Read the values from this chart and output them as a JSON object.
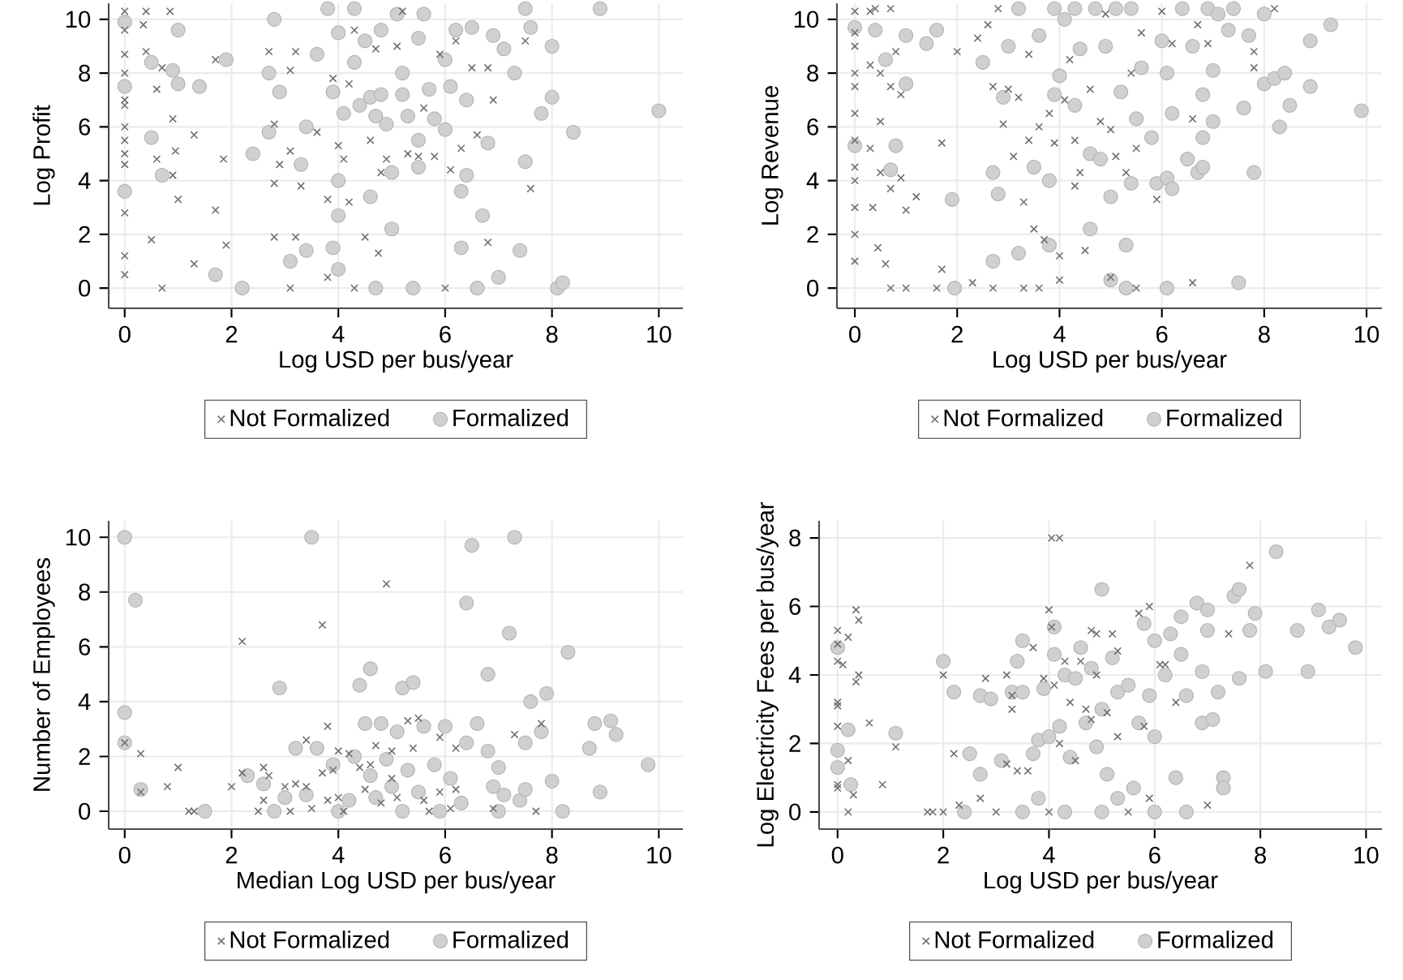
{
  "chart_data": [
    {
      "type": "scatter",
      "xlabel": "Log USD per bus/year",
      "ylabel": "Log Profit",
      "xlim": [
        -0.3,
        10.45
      ],
      "ylim": [
        -0.75,
        10.6
      ],
      "xticks": [
        0,
        2,
        4,
        6,
        8,
        10
      ],
      "yticks": [
        0,
        2,
        4,
        6,
        8,
        10
      ],
      "grid": true,
      "legend": "bottom",
      "series": [
        {
          "name": "Not Formalized",
          "color": "#707070",
          "marker": "cross",
          "x": [
            0,
            0,
            0,
            0,
            0,
            0,
            0,
            0,
            0,
            0,
            0,
            0,
            0,
            0.4,
            0.35,
            0.4,
            0.6,
            0.7,
            0.85,
            0.9,
            0.95,
            0.6,
            0.9,
            1,
            0.5,
            0.7,
            1.3,
            1.3,
            1.7,
            1.85,
            1.7,
            1.9,
            2.7,
            2.8,
            2.9,
            2.8,
            2.8,
            3.1,
            3.2,
            3.1,
            3.3,
            3.2,
            3.1,
            3.6,
            3.8,
            3.9,
            4,
            4.1,
            4.2,
            4.3,
            4.2,
            4.3,
            4.5,
            4.6,
            4.7,
            4.8,
            4.75,
            4.9,
            5.1,
            5.2,
            5.3,
            5.5,
            5.6,
            5.8,
            5.9,
            6,
            6.1,
            6.2,
            6.3,
            6.5,
            6.6,
            6.8,
            6.8,
            6.9,
            7.5,
            7.6,
            3.8
          ],
          "values": [
            10.3,
            9.6,
            8.7,
            8,
            7,
            6.8,
            6,
            5.5,
            5,
            4.6,
            2.8,
            1.2,
            0.5,
            10.3,
            9.8,
            8.8,
            7.4,
            8.2,
            10.3,
            6.3,
            5.1,
            4.8,
            4.2,
            3.3,
            1.8,
            0,
            0.9,
            5.7,
            8.5,
            4.8,
            2.9,
            1.6,
            8.8,
            6.1,
            4.6,
            3.9,
            1.9,
            8.1,
            8.8,
            5.1,
            3.8,
            1.9,
            0,
            5.8,
            3.3,
            7.8,
            5.3,
            4.8,
            7.6,
            9.6,
            3.2,
            0,
            1.9,
            5.5,
            8.9,
            4.3,
            1.3,
            4.8,
            9,
            10.3,
            5,
            4.9,
            6.7,
            4.9,
            8.7,
            0,
            4.4,
            9.2,
            5.2,
            8.2,
            5.7,
            8.2,
            1.7,
            7,
            9.2,
            3.7,
            0.4
          ]
        },
        {
          "name": "Formalized",
          "color": "#d0d0d0",
          "marker": "circle",
          "x": [
            0,
            0,
            0,
            0.5,
            0.5,
            0.7,
            0.9,
            1,
            1,
            1.4,
            1.7,
            1.9,
            2.2,
            2.4,
            2.7,
            2.8,
            2.7,
            2.9,
            3.1,
            3.3,
            3.4,
            3.4,
            3.6,
            3.8,
            3.9,
            3.9,
            4,
            4,
            4,
            4,
            4.1,
            4.3,
            4.3,
            4.4,
            4.5,
            4.6,
            4.6,
            4.7,
            4.8,
            4.8,
            4.9,
            5,
            5,
            5.1,
            5.2,
            5.3,
            5.4,
            5.5,
            5.5,
            5.6,
            5.7,
            5.8,
            6,
            6,
            6.2,
            6.3,
            6.3,
            6.4,
            6.4,
            6.5,
            6.6,
            6.7,
            6.8,
            6.9,
            7,
            7.1,
            7.3,
            7.4,
            7.5,
            7.5,
            7.6,
            7.8,
            8,
            8,
            8.1,
            8.2,
            8.4,
            8.9,
            10,
            5.5,
            5.2,
            4.7,
            6.1
          ],
          "values": [
            9.9,
            7.5,
            3.6,
            5.6,
            8.4,
            4.2,
            8.1,
            9.6,
            7.6,
            7.5,
            0.5,
            8.5,
            0,
            5,
            5.8,
            10,
            8,
            7.3,
            1,
            4.6,
            1.4,
            6,
            8.7,
            10.4,
            7.3,
            1.5,
            4,
            0.7,
            2.7,
            9.5,
            6.5,
            10.4,
            8.4,
            6.8,
            9.2,
            3.4,
            7.1,
            0,
            9.6,
            7.2,
            6.1,
            2.2,
            4.3,
            10.2,
            8,
            6.4,
            0,
            9.3,
            4.5,
            10.2,
            7.4,
            6.3,
            5.9,
            8.5,
            9.6,
            1.5,
            3.6,
            7,
            4.2,
            9.7,
            0,
            2.7,
            5.4,
            9.4,
            0.4,
            8.9,
            8,
            1.4,
            10.4,
            4.7,
            9.7,
            6.5,
            7.1,
            9,
            0,
            0.2,
            5.8,
            10.4,
            6.6,
            5.5,
            7.2,
            6.4,
            7.5
          ]
        }
      ]
    },
    {
      "type": "scatter",
      "xlabel": "Log USD per bus/year",
      "ylabel": "Log Revenue",
      "xlim": [
        -0.35,
        10.3
      ],
      "ylim": [
        -0.75,
        10.6
      ],
      "xticks": [
        0,
        2,
        4,
        6,
        8,
        10
      ],
      "yticks": [
        0,
        2,
        4,
        6,
        8,
        10
      ],
      "grid": true,
      "legend": "bottom",
      "series": [
        {
          "name": "Not Formalized",
          "color": "#707070",
          "marker": "cross",
          "x": [
            0,
            0,
            0,
            0,
            0,
            0,
            0,
            0,
            0,
            0,
            0,
            0,
            0.3,
            0.4,
            0.7,
            0.3,
            0.5,
            0.7,
            0.8,
            0.9,
            0.5,
            0.3,
            0.5,
            0.7,
            0.9,
            1,
            1.2,
            0.35,
            0.45,
            0.6,
            0.7,
            1,
            1.6,
            1.7,
            1.7,
            2,
            2.3,
            2.4,
            2.6,
            2.7,
            2.7,
            2.8,
            2.9,
            3,
            3.1,
            3.2,
            3.3,
            3.3,
            3.4,
            3.4,
            3.5,
            3.6,
            3.6,
            3.7,
            3.8,
            3.9,
            4,
            4,
            4.1,
            4.2,
            4.3,
            4.3,
            4.4,
            4.5,
            4.6,
            4.8,
            4.9,
            5,
            5,
            5.1,
            5.3,
            5.4,
            5.5,
            5.5,
            5.6,
            5.9,
            6,
            6.2,
            6.6,
            6.6,
            6.7,
            6.9,
            7.8,
            7.8,
            8.2
          ],
          "values": [
            10.3,
            9.5,
            9,
            8,
            7.5,
            6.5,
            5.5,
            4.5,
            4,
            3,
            2,
            1,
            10.3,
            10.4,
            10.4,
            8.3,
            8,
            7.5,
            8.8,
            7.2,
            6.2,
            5.2,
            4.3,
            3.7,
            4.1,
            2.9,
            3.4,
            3,
            1.5,
            0.9,
            0,
            0,
            0,
            0.7,
            5.4,
            8.8,
            0.2,
            9.3,
            9.8,
            7.5,
            0,
            10.4,
            6.1,
            7.4,
            4.9,
            7.1,
            0,
            3.2,
            8.7,
            5.5,
            2.2,
            6,
            0,
            1.8,
            6.5,
            5.4,
            1.2,
            0.3,
            7,
            8.5,
            5.5,
            3.8,
            4.3,
            1.4,
            7.4,
            6.2,
            10.2,
            5.9,
            0.4,
            4.9,
            4.3,
            8,
            0,
            5.2,
            9.5,
            3.3,
            10.3,
            9.1,
            6.3,
            0.2,
            9.8,
            9.1,
            8.8,
            8.2,
            10.4
          ]
        },
        {
          "name": "Formalized",
          "color": "#d0d0d0",
          "marker": "circle",
          "x": [
            0,
            0,
            0.4,
            0.6,
            0.8,
            0.7,
            1,
            1,
            1.4,
            1.6,
            1.9,
            1.95,
            2.5,
            2.7,
            2.7,
            2.8,
            2.9,
            3,
            3.2,
            3.2,
            3.5,
            3.6,
            3.8,
            3.8,
            3.9,
            3.9,
            4,
            4.1,
            4.3,
            4.3,
            4.4,
            4.6,
            4.6,
            4.7,
            4.8,
            4.9,
            5,
            5,
            5.1,
            5.2,
            5.3,
            5.3,
            5.4,
            5.4,
            5.5,
            5.6,
            5.8,
            5.9,
            6,
            6.1,
            6.1,
            6.1,
            6.2,
            6.2,
            6.4,
            6.5,
            6.6,
            6.7,
            6.8,
            6.8,
            6.8,
            6.9,
            7,
            7,
            7.1,
            7.3,
            7.4,
            7.5,
            7.6,
            7.7,
            7.8,
            8,
            8,
            8.2,
            8.3,
            8.4,
            8.5,
            8.9,
            8.9,
            9.3,
            9.9
          ],
          "values": [
            9.7,
            5.3,
            9.6,
            8.5,
            5.3,
            4.4,
            9.4,
            7.6,
            9.1,
            9.6,
            3.3,
            0,
            8.4,
            4.3,
            1,
            3.5,
            7.1,
            9,
            10.4,
            1.3,
            4.5,
            9.4,
            1.6,
            4,
            10.4,
            7.2,
            7.9,
            10,
            10.4,
            6.8,
            8.9,
            2.2,
            5,
            10.4,
            4.8,
            9,
            3.4,
            0.3,
            10.4,
            7.3,
            1.6,
            0,
            10.4,
            3.9,
            6.3,
            8.2,
            5.6,
            3.9,
            9.2,
            4.1,
            0,
            8,
            6.5,
            3.7,
            10.4,
            4.8,
            9,
            4.3,
            7.2,
            5.6,
            4.5,
            10.4,
            6.2,
            8.1,
            10.2,
            9.6,
            10.4,
            0.2,
            6.7,
            9.4,
            4.3,
            10.2,
            7.6,
            7.8,
            6,
            8,
            6.8,
            9.2,
            7.5,
            9.8,
            6.6
          ]
        }
      ]
    },
    {
      "type": "scatter",
      "xlabel": "Median Log USD per bus/year",
      "ylabel": "Number of Employees",
      "xlim": [
        -0.3,
        10.45
      ],
      "ylim": [
        -0.65,
        10.6
      ],
      "xticks": [
        0,
        2,
        4,
        6,
        8,
        10
      ],
      "yticks": [
        0,
        2,
        4,
        6,
        8,
        10
      ],
      "grid": true,
      "legend": "bottom",
      "series": [
        {
          "name": "Not Formalized",
          "color": "#707070",
          "marker": "cross",
          "x": [
            0,
            0.3,
            0.3,
            0.8,
            1,
            1.2,
            1.3,
            2,
            2.2,
            2.2,
            2.5,
            2.6,
            2.6,
            2.7,
            3,
            3.1,
            3.2,
            3.4,
            3.4,
            3.5,
            3.7,
            3.7,
            3.8,
            3.8,
            3.9,
            4,
            4,
            4.1,
            4.2,
            4.4,
            4.5,
            4.6,
            4.7,
            4.8,
            4.9,
            5,
            5,
            5.1,
            5.3,
            5.4,
            5.5,
            5.6,
            5.7,
            5.9,
            5.9,
            6.1,
            6.2,
            6.2,
            6.9,
            7.3,
            7.7,
            7.8
          ],
          "values": [
            2.5,
            2.1,
            0.7,
            0.9,
            1.6,
            0,
            0,
            0.9,
            6.2,
            1.4,
            0,
            1.6,
            0.4,
            1.3,
            0.9,
            0,
            1,
            2.6,
            0.9,
            0.1,
            6.8,
            1.4,
            3.1,
            0.4,
            1.5,
            2.2,
            0.5,
            0,
            2.1,
            1.6,
            0.8,
            1.7,
            2.4,
            0.3,
            8.3,
            2.2,
            1.2,
            0.5,
            3.3,
            2.3,
            3.4,
            0.4,
            0,
            2.7,
            0.7,
            0.1,
            0.8,
            2.3,
            0.1,
            2.8,
            0,
            3.2
          ]
        },
        {
          "name": "Formalized",
          "color": "#d0d0d0",
          "marker": "circle",
          "x": [
            0,
            0,
            0,
            0.2,
            0.3,
            1.5,
            2.3,
            2.6,
            2.9,
            2.8,
            3,
            3.2,
            3.4,
            3.5,
            3.6,
            3.9,
            4,
            4.2,
            4.3,
            4.4,
            4.5,
            4.6,
            4.6,
            4.7,
            4.8,
            4.9,
            5,
            5.1,
            5.2,
            5.2,
            5.3,
            5.4,
            5.5,
            5.6,
            5.8,
            5.9,
            6,
            6.1,
            6.3,
            6.4,
            6.5,
            6.4,
            6.6,
            6.8,
            6.8,
            6.9,
            7,
            7,
            7.1,
            7.2,
            7.3,
            7.4,
            7.5,
            7.5,
            7.6,
            7.8,
            7.9,
            8,
            8.2,
            8.3,
            8.7,
            8.8,
            8.9,
            9.1,
            9.2,
            9.8
          ],
          "values": [
            10,
            3.6,
            2.5,
            7.7,
            0.8,
            0,
            1.3,
            1,
            4.5,
            0,
            0.5,
            2.3,
            0.6,
            10,
            2.3,
            1.7,
            0,
            0.4,
            2,
            4.6,
            3.2,
            5.2,
            1.3,
            0.5,
            3.2,
            1.9,
            0.9,
            2.9,
            4.5,
            0,
            1.5,
            4.7,
            0.7,
            3.1,
            1.7,
            0,
            3.1,
            1.2,
            0.3,
            2.5,
            9.7,
            7.6,
            3.2,
            5,
            2.2,
            0.9,
            1.6,
            0,
            0.6,
            6.5,
            10,
            0.4,
            2.5,
            0.8,
            4,
            2.9,
            4.3,
            1.1,
            0,
            5.8,
            2.3,
            3.2,
            0.7,
            3.3,
            2.8,
            1.7
          ]
        }
      ]
    },
    {
      "type": "scatter",
      "xlabel": "Log USD per bus/year",
      "ylabel": "Log Electricity Fees per bus/year",
      "xlim": [
        -0.35,
        10.3
      ],
      "ylim": [
        -0.5,
        8.5
      ],
      "xticks": [
        0,
        2,
        4,
        6,
        8,
        10
      ],
      "yticks": [
        0,
        2,
        4,
        6,
        8
      ],
      "grid": true,
      "legend": "bottom",
      "series": [
        {
          "name": "Not Formalized",
          "color": "#707070",
          "marker": "cross",
          "x": [
            0,
            0,
            0,
            0,
            0,
            0,
            0,
            0,
            0.1,
            0.2,
            0.2,
            0.2,
            0.3,
            0.35,
            0.35,
            0.4,
            0.4,
            0.6,
            0.85,
            1.1,
            1.7,
            1.8,
            2,
            2,
            2.2,
            2.3,
            2.7,
            2.8,
            3,
            3.2,
            3.2,
            3.3,
            3.3,
            3.4,
            3.6,
            3.7,
            3.9,
            4,
            4,
            4.05,
            4.05,
            4.1,
            4.2,
            4.2,
            4.3,
            4.4,
            4.5,
            4.6,
            4.7,
            4.8,
            4.8,
            4.9,
            4.9,
            5.1,
            5.2,
            5.3,
            5.3,
            5.5,
            5.7,
            5.8,
            5.9,
            5.9,
            6.1,
            6.2,
            6.4,
            7,
            7.4,
            7.8
          ],
          "values": [
            5.3,
            4.9,
            4.4,
            3.2,
            3.1,
            2.5,
            0.8,
            0.7,
            4.3,
            5.1,
            1.5,
            0,
            0.5,
            3.8,
            5.9,
            5.6,
            4,
            2.6,
            0.8,
            1.9,
            0,
            0,
            4,
            0,
            1.7,
            0.2,
            0.4,
            3.9,
            0,
            4,
            1.4,
            3.4,
            3,
            1.2,
            1.2,
            4.8,
            3.9,
            5.9,
            0,
            5.4,
            8,
            3.7,
            8,
            2,
            4.4,
            3.2,
            1.5,
            4.4,
            3,
            5.3,
            2.7,
            5.2,
            4,
            2.9,
            5.2,
            2.2,
            4.7,
            0,
            5.8,
            2.5,
            6,
            0.4,
            4.3,
            4.3,
            3.2,
            0.2,
            5.2,
            7.2
          ]
        },
        {
          "name": "Formalized",
          "color": "#d0d0d0",
          "marker": "circle",
          "x": [
            0,
            0,
            0,
            0.2,
            0.25,
            1.1,
            2,
            2.2,
            2.4,
            2.5,
            2.7,
            2.7,
            2.9,
            3.1,
            3.3,
            3.4,
            3.5,
            3.5,
            3.5,
            3.7,
            3.8,
            3.8,
            3.9,
            4,
            4.1,
            4.1,
            4.2,
            4.3,
            4.3,
            4.4,
            4.5,
            4.6,
            4.7,
            4.8,
            4.9,
            5,
            5,
            5,
            5.1,
            5.2,
            5.3,
            5.3,
            5.5,
            5.6,
            5.7,
            5.8,
            5.9,
            6,
            6,
            6,
            6.2,
            6.3,
            6.4,
            6.5,
            6.5,
            6.6,
            6.6,
            6.8,
            6.9,
            6.9,
            7,
            7,
            7.1,
            7.2,
            7.3,
            7.3,
            7.5,
            7.6,
            7.6,
            7.8,
            7.9,
            8.1,
            8.3,
            8.7,
            8.9,
            9.1,
            9.3,
            9.5,
            9.8
          ],
          "values": [
            4.8,
            1.8,
            1.3,
            2.4,
            0.8,
            2.3,
            4.4,
            3.5,
            0,
            1.7,
            3.4,
            1.1,
            3.3,
            1.5,
            3.5,
            4.4,
            0,
            3.5,
            5,
            1.7,
            2.1,
            0.4,
            3.6,
            2.2,
            4.6,
            5.4,
            2.5,
            0,
            4,
            1.6,
            3.9,
            4.8,
            2.6,
            4.2,
            1.9,
            6.5,
            3,
            0,
            1.1,
            4.5,
            3.5,
            0.4,
            3.7,
            0.7,
            2.6,
            5.5,
            3.4,
            2.2,
            5,
            0,
            4,
            5.2,
            1,
            4.6,
            5.7,
            3.4,
            0,
            6.1,
            4.1,
            2.6,
            5.3,
            5.9,
            2.7,
            3.5,
            1,
            0.7,
            6.3,
            6.5,
            3.9,
            5.3,
            5.8,
            4.1,
            7.6,
            5.3,
            4.1,
            5.9,
            5.4,
            5.6,
            4.8
          ]
        }
      ]
    }
  ]
}
